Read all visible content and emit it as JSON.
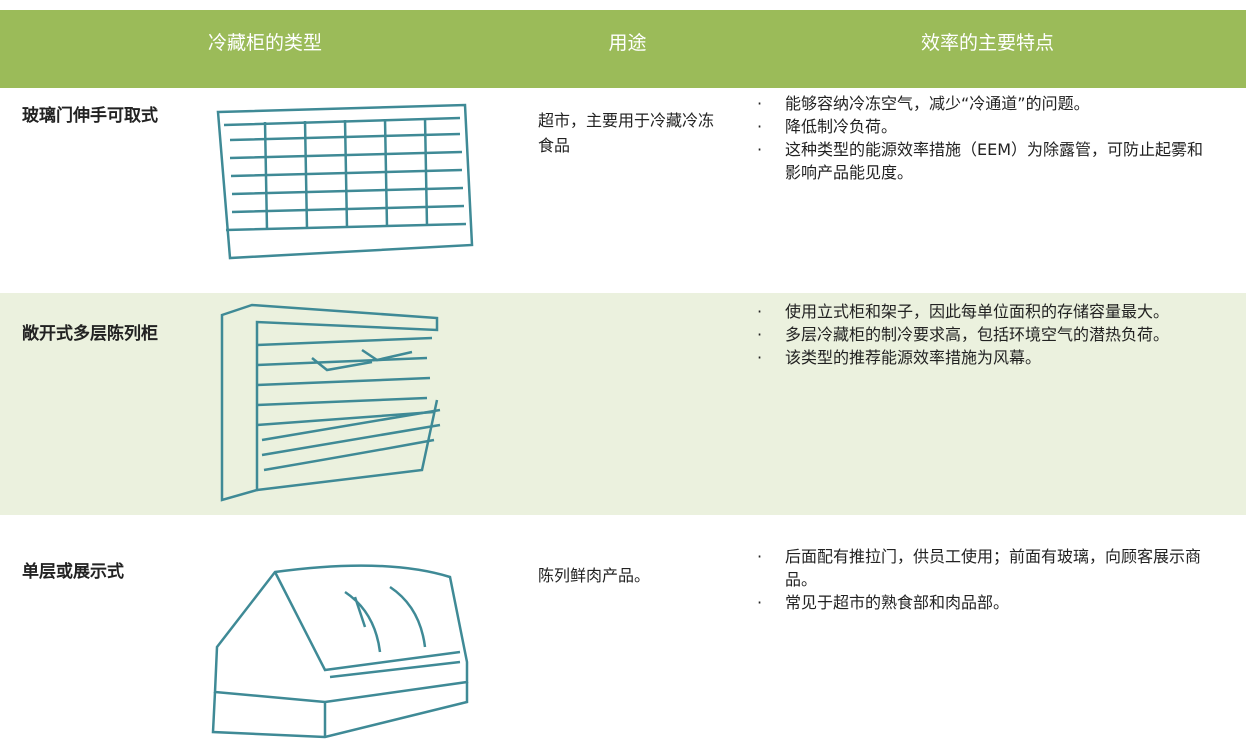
{
  "header": {
    "columns": [
      "冷藏柜的类型",
      "用途",
      "效率的主要特点"
    ]
  },
  "rows": [
    {
      "name": "玻璃门伸手可取式",
      "use": "超市，主要用于冷藏冷冻食品",
      "features": [
        "能够容纳冷冻空气，减少“冷通道”的问题。",
        "降低制冷负荷。",
        "这种类型的能源效率措施（EEM）为除露管，可防止起雾和影响产品能见度。"
      ]
    },
    {
      "name": "敞开式多层陈列柜",
      "features": [
        "使用立式柜和架子，因此每单位面积的存储容量最大。",
        "多层冷藏柜的制冷要求高，包括环境空气的潜热负荷。",
        "该类型的推荐能源效率措施为风幕。"
      ]
    },
    {
      "name": "单层或展示式",
      "use": "陈列鲜肉产品。",
      "features": [
        "后面配有推拉门，供员工使用；前面有玻璃，向顾客展示商品。",
        "常见于超市的熟食部和肉品部。"
      ]
    }
  ]
}
